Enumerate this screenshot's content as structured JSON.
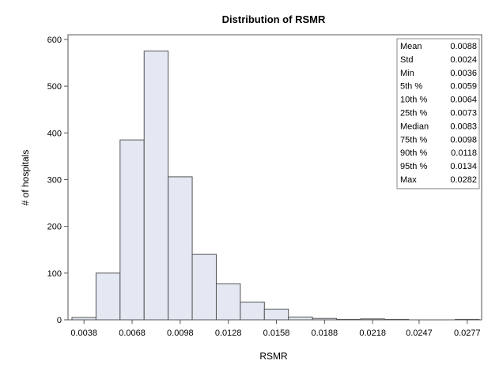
{
  "chart_data": {
    "type": "bar",
    "title": "Distribution of RSMR",
    "xlabel": "RSMR",
    "ylabel": "# of hospitals",
    "ylim": [
      0,
      610
    ],
    "yticks": [
      0,
      100,
      200,
      300,
      400,
      500,
      600
    ],
    "xticks": [
      "0.0038",
      "0.0068",
      "0.0098",
      "0.0128",
      "0.0158",
      "0.0188",
      "0.0218",
      "0.0247",
      "0.0277"
    ],
    "bin_width": 0.0015,
    "bins": [
      {
        "center": 0.0038,
        "count": 5
      },
      {
        "center": 0.0053,
        "count": 100
      },
      {
        "center": 0.0068,
        "count": 385
      },
      {
        "center": 0.0083,
        "count": 575
      },
      {
        "center": 0.0098,
        "count": 306
      },
      {
        "center": 0.0113,
        "count": 140
      },
      {
        "center": 0.0128,
        "count": 77
      },
      {
        "center": 0.0143,
        "count": 38
      },
      {
        "center": 0.0158,
        "count": 23
      },
      {
        "center": 0.0173,
        "count": 6
      },
      {
        "center": 0.0188,
        "count": 3
      },
      {
        "center": 0.0203,
        "count": 1
      },
      {
        "center": 0.0218,
        "count": 2
      },
      {
        "center": 0.0233,
        "count": 1
      },
      {
        "center": 0.0247,
        "count": 0
      },
      {
        "center": 0.0262,
        "count": 0
      },
      {
        "center": 0.0277,
        "count": 1
      }
    ],
    "grid": false,
    "legend_placement": "top-right",
    "stats": [
      {
        "label": "Mean",
        "value": "0.0088"
      },
      {
        "label": "Std",
        "value": "0.0024"
      },
      {
        "label": "Min",
        "value": "0.0036"
      },
      {
        "label": "5th  %",
        "value": "0.0059"
      },
      {
        "label": "10th %",
        "value": "0.0064"
      },
      {
        "label": "25th %",
        "value": "0.0073"
      },
      {
        "label": "Median",
        "value": "0.0083"
      },
      {
        "label": "75th %",
        "value": "0.0098"
      },
      {
        "label": "90th %",
        "value": "0.0118"
      },
      {
        "label": "95th %",
        "value": "0.0134"
      },
      {
        "label": "Max",
        "value": "0.0282"
      }
    ],
    "colors": {
      "bar_fill": "#e3e8f2",
      "bar_stroke": "#555555"
    }
  }
}
